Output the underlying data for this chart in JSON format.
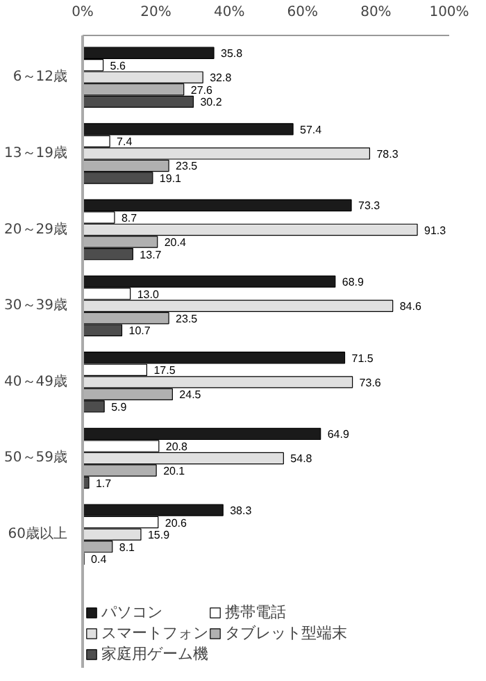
{
  "chart_data": {
    "type": "bar",
    "orientation": "horizontal",
    "categories": [
      "6～12歳",
      "13～19歳",
      "20～29歳",
      "30～39歳",
      "40～49歳",
      "50～59歳",
      "60歳以上"
    ],
    "series": [
      {
        "name": "パソコン",
        "color": "#1a1a1a",
        "values": [
          35.8,
          57.4,
          73.3,
          68.9,
          71.5,
          64.9,
          38.3
        ]
      },
      {
        "name": "携帯電話",
        "color": "#ffffff",
        "values": [
          5.6,
          7.4,
          8.7,
          13.0,
          17.5,
          20.8,
          20.6
        ],
        "value_labels": [
          "5.6",
          "7.4",
          "8.7",
          "13.0",
          "17.5",
          "20.8",
          "20.6"
        ]
      },
      {
        "name": "スマートフォン",
        "color": "#e0e0e0",
        "values": [
          32.8,
          78.3,
          91.3,
          84.6,
          73.6,
          54.8,
          15.9
        ]
      },
      {
        "name": "タブレット型端末",
        "color": "#b0b0b0",
        "values": [
          27.6,
          23.5,
          20.4,
          23.5,
          24.5,
          20.1,
          8.1
        ]
      },
      {
        "name": "家庭用ゲーム機",
        "color": "#4d4d4d",
        "values": [
          30.2,
          19.1,
          13.7,
          10.7,
          5.9,
          1.7,
          0.4
        ]
      }
    ],
    "xlim": [
      0,
      100
    ],
    "xticks": [
      {
        "value": 0,
        "label": "0%"
      },
      {
        "value": 20,
        "label": "20%"
      },
      {
        "value": 40,
        "label": "40%"
      },
      {
        "value": 60,
        "label": "60%"
      },
      {
        "value": 80,
        "label": "80%"
      },
      {
        "value": 100,
        "label": "100%"
      }
    ],
    "data_labels": true,
    "grid": false,
    "legend": "bottom"
  }
}
